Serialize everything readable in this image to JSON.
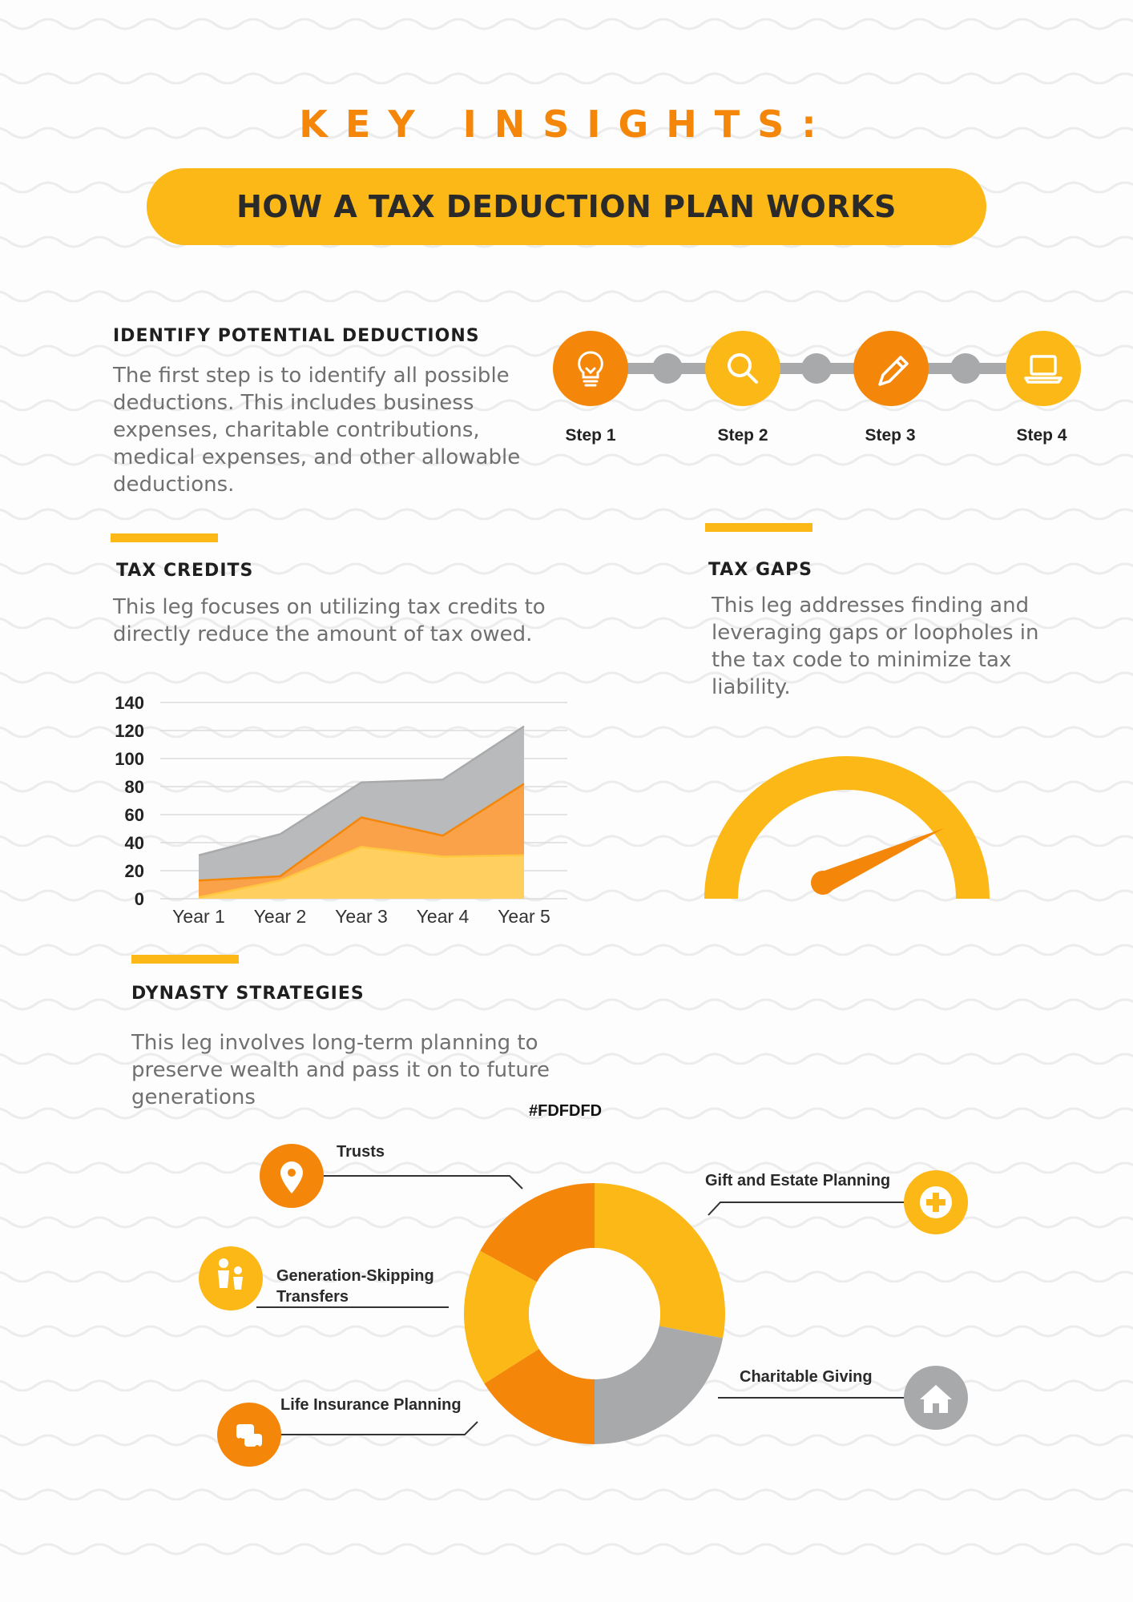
{
  "header": {
    "kicker": "KEY INSIGHTS:",
    "banner_title": "HOW A TAX DEDUCTION PLAN WORKS"
  },
  "identify": {
    "heading": "IDENTIFY POTENTIAL DEDUCTIONS",
    "body": "The first step is to identify all possible deductions. This includes business expenses, charitable contributions, medical expenses, and other allowable deductions."
  },
  "steps": [
    {
      "label": "Step 1",
      "icon": "lightbulb-icon",
      "color": "#f4860a"
    },
    {
      "label": "Step 2",
      "icon": "search-icon",
      "color": "#fbb817"
    },
    {
      "label": "Step 3",
      "icon": "pencil-icon",
      "color": "#f4860a"
    },
    {
      "label": "Step 4",
      "icon": "laptop-icon",
      "color": "#fbb817"
    }
  ],
  "tax_credits": {
    "heading": "TAX CREDITS",
    "body": "This leg focuses on utilizing tax credits to directly reduce the amount of tax owed."
  },
  "tax_gaps": {
    "heading": "TAX GAPS",
    "body": "This leg addresses finding and leveraging gaps or loopholes in the tax code to minimize tax liability.",
    "gauge_level": 0.8
  },
  "dynasty": {
    "heading": "DYNASTY STRATEGIES",
    "body": "This leg involves long-term planning to preserve wealth and pass it on to future generations",
    "note": "#FDFDFD"
  },
  "chart_data": [
    {
      "type": "area",
      "stacked": true,
      "categories": [
        "Year 1",
        "Year 2",
        "Year 3",
        "Year 4",
        "Year 5"
      ],
      "ylim": [
        0,
        140
      ],
      "yticks": [
        0,
        20,
        40,
        60,
        80,
        100,
        120,
        140
      ],
      "grid": true,
      "series": [
        {
          "values": [
            1,
            13,
            37,
            30,
            31
          ],
          "color": "#ffd060"
        },
        {
          "values": [
            12,
            3,
            21,
            15,
            51
          ],
          "color": "#f9a24a"
        },
        {
          "values": [
            18,
            30,
            25,
            40,
            41
          ],
          "color": "#b9babc"
        }
      ]
    },
    {
      "type": "pie",
      "donut": true,
      "slices": [
        {
          "label": "Gift and Estate Planning",
          "value": 28,
          "color": "#fbb817",
          "icon": "medical-cross-icon"
        },
        {
          "label": "Charitable Giving",
          "value": 22,
          "color": "#a8a9ab",
          "icon": "house-icon"
        },
        {
          "label": "Life Insurance Planning",
          "value": 16,
          "color": "#f4860a",
          "icon": "car-icon"
        },
        {
          "label": "Generation-Skipping Transfers",
          "value": 17,
          "color": "#fbb817",
          "icon": "family-icon"
        },
        {
          "label": "Trusts",
          "value": 17,
          "color": "#f4860a",
          "icon": "location-pin-icon"
        }
      ]
    }
  ]
}
